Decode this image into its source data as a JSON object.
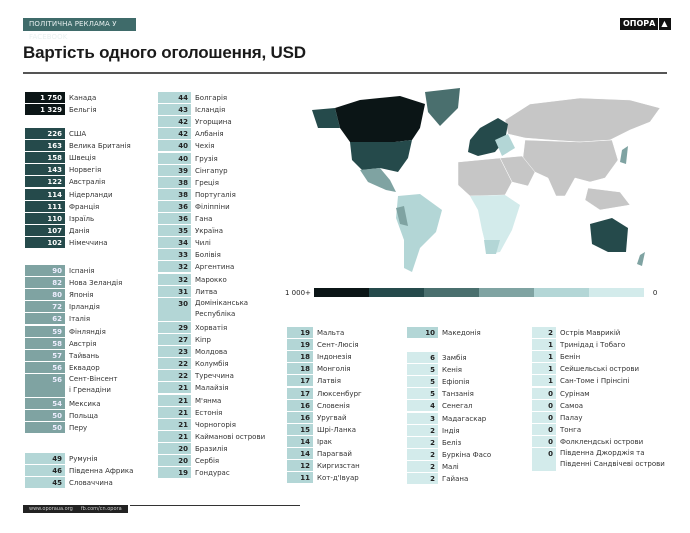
{
  "header": {
    "tag": "ПОЛІТИЧНА РЕКЛАМА У FACEBOOK",
    "logo": "ОПОРА",
    "logo_mark": "▲",
    "title": "Вартість одного оголошення, USD"
  },
  "footer": {
    "site": "www.oporaua.org",
    "fb": "fb.com/cn.opora"
  },
  "legend": {
    "max_label": "1 000+",
    "min_label": "0",
    "colors": [
      "#0b1516",
      "#254a4b",
      "#4a6f6e",
      "#7fa3a2",
      "#b3d6d6",
      "#d3ebeb"
    ]
  },
  "chart_data": {
    "type": "table",
    "title": "Вартість одного оголошення, USD",
    "groups": [
      {
        "color": "#0b1516",
        "text": "#fff",
        "items": [
          [
            "1 750",
            "Канада"
          ],
          [
            "1 329",
            "Бельгія"
          ]
        ]
      },
      {
        "color": "#254a4b",
        "text": "#fff",
        "items": [
          [
            "226",
            "США"
          ],
          [
            "163",
            "Велика Британія"
          ],
          [
            "158",
            "Швеція"
          ],
          [
            "143",
            "Норвегія"
          ],
          [
            "122",
            "Австралія"
          ],
          [
            "114",
            "Нідерланди"
          ],
          [
            "111",
            "Франція"
          ],
          [
            "110",
            "Ізраїль"
          ],
          [
            "107",
            "Данія"
          ],
          [
            "102",
            "Німеччина"
          ]
        ]
      },
      {
        "color": "#7fa3a2",
        "text": "#eef",
        "items": [
          [
            "90",
            "Іспанія"
          ],
          [
            "82",
            "Нова Зеландія"
          ],
          [
            "80",
            "Японія"
          ],
          [
            "72",
            "Ірландія"
          ],
          [
            "62",
            "Італія"
          ],
          [
            "59",
            "Фінляндія"
          ],
          [
            "58",
            "Австрія"
          ],
          [
            "57",
            "Тайвань"
          ],
          [
            "56",
            "Еквадор"
          ],
          [
            "56",
            "Сент-Вінсент|і Гренадіни"
          ],
          [
            "54",
            "Мексика"
          ],
          [
            "50",
            "Польща"
          ],
          [
            "50",
            "Перу"
          ]
        ]
      },
      {
        "color": "#b3d6d6",
        "text": "#222",
        "items": [
          [
            "49",
            "Румунія"
          ],
          [
            "46",
            "Південна Африка"
          ],
          [
            "45",
            "Словаччина"
          ]
        ]
      },
      {
        "color": "#b3d6d6",
        "text": "#222",
        "items": [
          [
            "44",
            "Болгарія"
          ],
          [
            "43",
            "Ісландія"
          ],
          [
            "42",
            "Угорщина"
          ],
          [
            "42",
            "Албанія"
          ],
          [
            "40",
            "Чехія"
          ],
          [
            "40",
            "Грузія"
          ],
          [
            "39",
            "Сінгапур"
          ],
          [
            "38",
            "Греція"
          ],
          [
            "38",
            "Португалія"
          ],
          [
            "36",
            "Філіппіни"
          ],
          [
            "36",
            "Гана"
          ],
          [
            "35",
            "Україна"
          ],
          [
            "34",
            "Чилі"
          ],
          [
            "33",
            "Болівія"
          ],
          [
            "32",
            "Аргентина"
          ],
          [
            "32",
            "Марокко"
          ],
          [
            "31",
            "Литва"
          ],
          [
            "30",
            "Домініканська|Республіка"
          ],
          [
            "29",
            "Хорватія"
          ],
          [
            "27",
            "Кіпр"
          ],
          [
            "23",
            "Молдова"
          ],
          [
            "22",
            "Колумбія"
          ],
          [
            "22",
            "Туреччина"
          ],
          [
            "21",
            "Малайзія"
          ],
          [
            "21",
            "М'янма"
          ],
          [
            "21",
            "Естонія"
          ],
          [
            "21",
            "Чорногорія"
          ],
          [
            "21",
            "Кайманові острови"
          ],
          [
            "20",
            "Бразилія"
          ],
          [
            "20",
            "Сербія"
          ],
          [
            "19",
            "Гондурас"
          ]
        ]
      },
      {
        "color": "#b3d6d6",
        "text": "#222",
        "items": [
          [
            "19",
            "Мальта"
          ],
          [
            "19",
            "Сент-Люсія"
          ],
          [
            "18",
            "Індонезія"
          ],
          [
            "18",
            "Монголія"
          ],
          [
            "17",
            "Латвія"
          ],
          [
            "17",
            "Люксенбург"
          ],
          [
            "16",
            "Словенія"
          ],
          [
            "16",
            "Уругвай"
          ],
          [
            "15",
            "Шрі-Ланка"
          ],
          [
            "14",
            "Ірак"
          ],
          [
            "14",
            "Парагвай"
          ],
          [
            "12",
            "Киргизстан"
          ],
          [
            "11",
            "Кот-д'Івуар"
          ]
        ]
      },
      {
        "color": "#b3d6d6",
        "text": "#222",
        "items": [
          [
            "10",
            "Македонія"
          ]
        ]
      },
      {
        "color": "#d3ebeb",
        "text": "#222",
        "items": [
          [
            "6",
            "Замбія"
          ],
          [
            "5",
            "Кенія"
          ],
          [
            "5",
            "Ефіопія"
          ],
          [
            "5",
            "Танзанія"
          ],
          [
            "4",
            "Сенегал"
          ],
          [
            "3",
            "Мадагаскар"
          ],
          [
            "2",
            "Індія"
          ],
          [
            "2",
            "Беліз"
          ],
          [
            "2",
            "Буркіна Фасо"
          ],
          [
            "2",
            "Малі"
          ],
          [
            "2",
            "Гайана"
          ]
        ]
      },
      {
        "color": "#d3ebeb",
        "text": "#222",
        "items": [
          [
            "2",
            "Острів Маврикій"
          ],
          [
            "1",
            "Тринідад і Тобаго"
          ],
          [
            "1",
            "Бенін"
          ],
          [
            "1",
            "Сейшельські острови"
          ],
          [
            "1",
            "Сан-Томе і Прінсіпі"
          ],
          [
            "0",
            "Сурінам"
          ],
          [
            "0",
            "Самоа"
          ],
          [
            "0",
            "Палау"
          ],
          [
            "0",
            "Тонга"
          ],
          [
            "0",
            "Фолклендські острови"
          ],
          [
            "0",
            "Південна Джорджія та|Південні Сандвічеві острови"
          ]
        ]
      }
    ]
  }
}
